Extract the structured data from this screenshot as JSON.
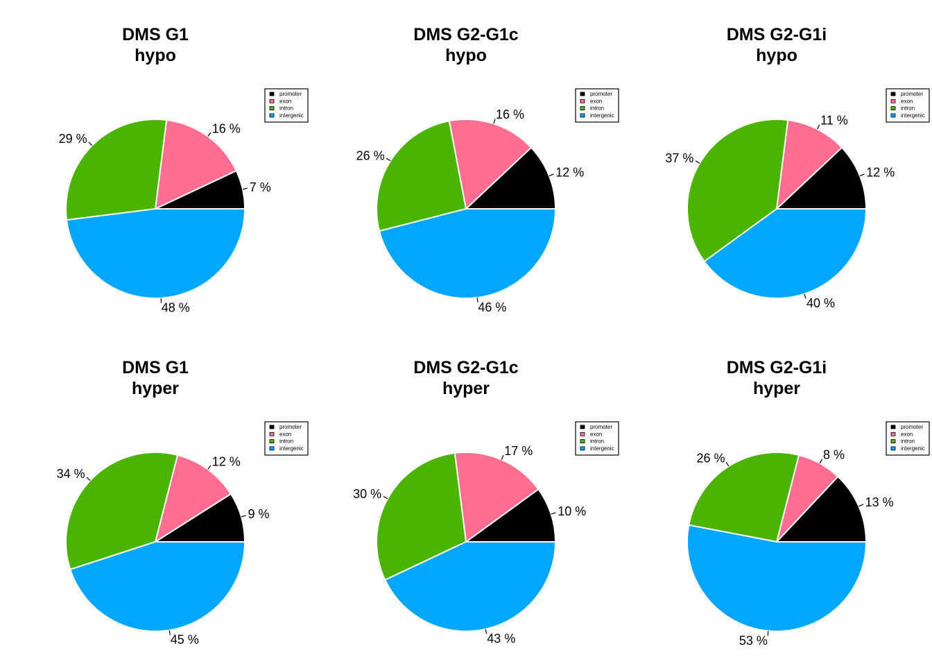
{
  "colors": {
    "promoter": "#000000",
    "exon": "#ff6e91",
    "intron": "#4bb400",
    "intergenic": "#00a6ff"
  },
  "legend_labels": [
    "promoter",
    "exon",
    "intron",
    "intergenic"
  ],
  "legend_placement": "top-right",
  "chart_data": [
    {
      "type": "pie",
      "title": [
        "DMS G1",
        "hypo"
      ],
      "categories": [
        "promoter",
        "exon",
        "intron",
        "intergenic"
      ],
      "values": [
        7,
        16,
        29,
        48
      ],
      "labels": [
        "7 %",
        "16 %",
        "29 %",
        "48 %"
      ]
    },
    {
      "type": "pie",
      "title": [
        "DMS G2-G1c",
        "hypo"
      ],
      "categories": [
        "promoter",
        "exon",
        "intron",
        "intergenic"
      ],
      "values": [
        12,
        16,
        26,
        46
      ],
      "labels": [
        "12 %",
        "16 %",
        "26 %",
        "46 %"
      ]
    },
    {
      "type": "pie",
      "title": [
        "DMS G2-G1i",
        "hypo"
      ],
      "categories": [
        "promoter",
        "exon",
        "intron",
        "intergenic"
      ],
      "values": [
        12,
        11,
        37,
        40
      ],
      "labels": [
        "12 %",
        "11 %",
        "37 %",
        "40 %"
      ]
    },
    {
      "type": "pie",
      "title": [
        "DMS G1",
        "hyper"
      ],
      "categories": [
        "promoter",
        "exon",
        "intron",
        "intergenic"
      ],
      "values": [
        9,
        12,
        34,
        45
      ],
      "labels": [
        "9 %",
        "12 %",
        "34 %",
        "45 %"
      ]
    },
    {
      "type": "pie",
      "title": [
        "DMS G2-G1c",
        "hyper"
      ],
      "categories": [
        "promoter",
        "exon",
        "intron",
        "intergenic"
      ],
      "values": [
        10,
        17,
        30,
        43
      ],
      "labels": [
        "10 %",
        "17 %",
        "30 %",
        "43 %"
      ]
    },
    {
      "type": "pie",
      "title": [
        "DMS G2-G1i",
        "hyper"
      ],
      "categories": [
        "promoter",
        "exon",
        "intron",
        "intergenic"
      ],
      "values": [
        13,
        8,
        26,
        53
      ],
      "labels": [
        "13 %",
        "8 %",
        "26 %",
        "53 %"
      ]
    }
  ]
}
